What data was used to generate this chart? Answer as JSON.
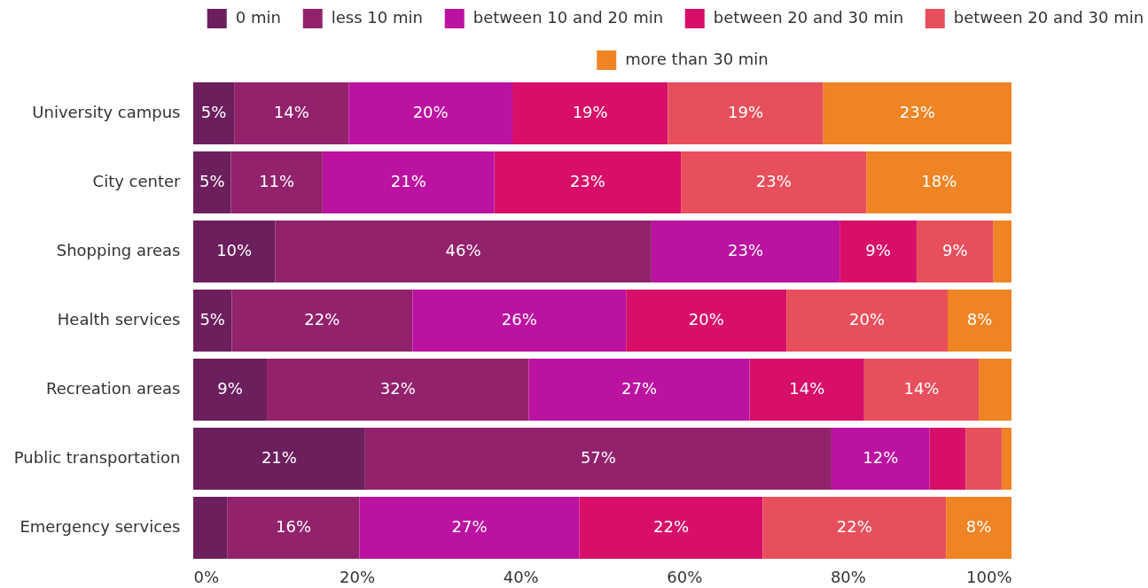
{
  "chart_data": {
    "type": "bar",
    "orientation": "horizontal",
    "stacked": true,
    "categories": [
      "University campus",
      "City center",
      "Shopping areas",
      "Health services",
      "Recreation areas",
      "Public transportation",
      "Emergency services"
    ],
    "series": [
      {
        "name": "0 min",
        "color": "#6c1f5d",
        "values": [
          5,
          4.6,
          10,
          4.7,
          9,
          21,
          4.2
        ],
        "value_labels": [
          "5%",
          "5%",
          "10%",
          "5%",
          "9%",
          "21%",
          null
        ]
      },
      {
        "name": "less 10 min",
        "color": "#92226c",
        "values": [
          14,
          11.2,
          46,
          22.1,
          32,
          57,
          16.1
        ],
        "value_labels": [
          "14%",
          "11%",
          "46%",
          "22%",
          "32%",
          "57%",
          "16%"
        ]
      },
      {
        "name": "between 10 and 20 min",
        "color": "#bb12a2",
        "values": [
          20,
          21,
          23,
          26.1,
          27,
          12,
          26.9
        ],
        "value_labels": [
          "20%",
          "21%",
          "23%",
          "26%",
          "27%",
          "12%",
          "27%"
        ]
      },
      {
        "name": "between 20 and 30 min",
        "color": "#d70f68",
        "values": [
          19,
          22.8,
          9.4,
          19.6,
          14,
          4.4,
          22.4
        ],
        "value_labels": [
          "19%",
          "23%",
          "9%",
          "20%",
          "14%",
          null,
          "22%"
        ]
      },
      {
        "name": "between 20 and 30 min",
        "color": "#e84f5c",
        "values": [
          19,
          22.7,
          9.4,
          19.7,
          14,
          4.4,
          22.4
        ],
        "value_labels": [
          "19%",
          "23%",
          "9%",
          "20%",
          "14%",
          null,
          "22%"
        ]
      },
      {
        "name": "more than 30 min",
        "color": "#ef8424",
        "values": [
          23,
          17.7,
          2.2,
          7.8,
          4,
          1.2,
          8
        ],
        "value_labels": [
          "23%",
          "18%",
          null,
          "8%",
          null,
          null,
          "8%"
        ]
      }
    ],
    "xlim": [
      0,
      100
    ],
    "xticks": [
      {
        "value": 0,
        "label": "0%"
      },
      {
        "value": 20,
        "label": "20%"
      },
      {
        "value": 40,
        "label": "40%"
      },
      {
        "value": 60,
        "label": "60%"
      },
      {
        "value": 80,
        "label": "80%"
      },
      {
        "value": 100,
        "label": "100%"
      }
    ],
    "legend": "top"
  }
}
